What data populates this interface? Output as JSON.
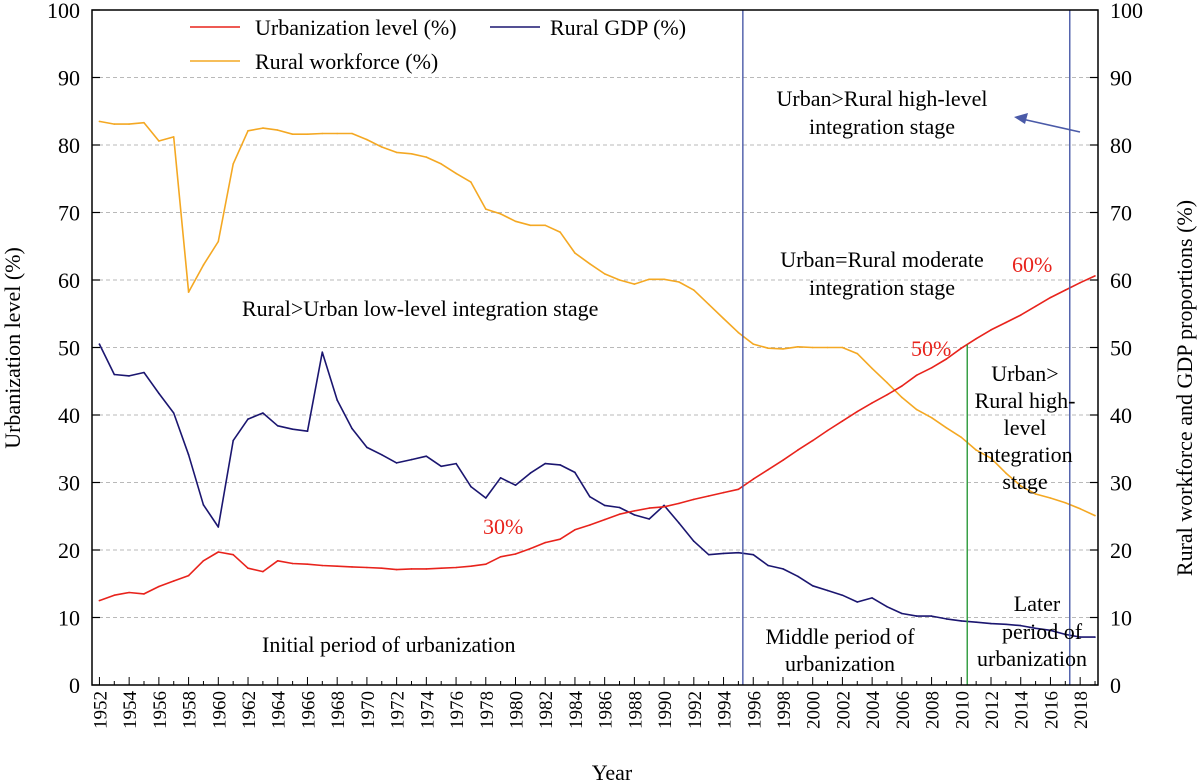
{
  "chart_data": {
    "type": "line",
    "title": "",
    "xlabel": "Year",
    "ylabel_left": "Urbanization level (%)",
    "ylabel_right": "Rural workforce and GDP proportions (%)",
    "xlim": [
      1951.5,
      2019.2
    ],
    "ylim": [
      0,
      100
    ],
    "grid": "horizontal dashed",
    "x_ticks": [
      1952,
      1954,
      1956,
      1958,
      1960,
      1962,
      1964,
      1966,
      1968,
      1970,
      1972,
      1974,
      1976,
      1978,
      1980,
      1982,
      1984,
      1986,
      1988,
      1990,
      1992,
      1994,
      1996,
      1998,
      2000,
      2002,
      2004,
      2006,
      2008,
      2010,
      2012,
      2014,
      2016,
      2018
    ],
    "y_ticks": [
      0,
      10,
      20,
      30,
      40,
      50,
      60,
      70,
      80,
      90,
      100
    ],
    "series": [
      {
        "name": "Urbanization level (%)",
        "color": "#e8231c",
        "x": [
          1952,
          1953,
          1954,
          1955,
          1956,
          1957,
          1958,
          1959,
          1960,
          1961,
          1962,
          1963,
          1964,
          1965,
          1966,
          1967,
          1968,
          1969,
          1970,
          1971,
          1972,
          1973,
          1974,
          1975,
          1976,
          1977,
          1978,
          1979,
          1980,
          1981,
          1982,
          1983,
          1984,
          1985,
          1986,
          1987,
          1988,
          1989,
          1990,
          1991,
          1992,
          1993,
          1994,
          1995,
          1996,
          1997,
          1998,
          1999,
          2000,
          2001,
          2002,
          2003,
          2004,
          2005,
          2006,
          2007,
          2008,
          2009,
          2010,
          2011,
          2012,
          2013,
          2014,
          2015,
          2016,
          2017,
          2018,
          2019
        ],
        "values": [
          12.5,
          13.3,
          13.7,
          13.5,
          14.6,
          15.4,
          16.2,
          18.4,
          19.7,
          19.3,
          17.3,
          16.8,
          18.4,
          18.0,
          17.9,
          17.7,
          17.6,
          17.5,
          17.4,
          17.3,
          17.1,
          17.2,
          17.2,
          17.3,
          17.4,
          17.6,
          17.9,
          19.0,
          19.4,
          20.2,
          21.1,
          21.6,
          23.0,
          23.7,
          24.5,
          25.3,
          25.8,
          26.2,
          26.4,
          26.9,
          27.5,
          28.0,
          28.5,
          29.0,
          30.5,
          31.9,
          33.3,
          34.8,
          36.2,
          37.7,
          39.1,
          40.5,
          41.8,
          43.0,
          44.3,
          45.9,
          47.0,
          48.3,
          49.9,
          51.3,
          52.6,
          53.7,
          54.8,
          56.1,
          57.4,
          58.5,
          59.6,
          60.6
        ]
      },
      {
        "name": "Rural GDP  (%)",
        "color": "#1b1670",
        "x": [
          1952,
          1953,
          1954,
          1955,
          1956,
          1957,
          1958,
          1959,
          1960,
          1961,
          1962,
          1963,
          1964,
          1965,
          1966,
          1967,
          1968,
          1969,
          1970,
          1971,
          1972,
          1973,
          1974,
          1975,
          1976,
          1977,
          1978,
          1979,
          1980,
          1981,
          1982,
          1983,
          1984,
          1985,
          1986,
          1987,
          1988,
          1989,
          1990,
          1991,
          1992,
          1993,
          1994,
          1995,
          1996,
          1997,
          1998,
          1999,
          2000,
          2001,
          2002,
          2003,
          2004,
          2005,
          2006,
          2007,
          2008,
          2009,
          2010,
          2011,
          2012,
          2013,
          2014,
          2015,
          2016,
          2017,
          2018,
          2019
        ],
        "values": [
          50.5,
          46.0,
          45.8,
          46.3,
          43.2,
          40.3,
          34.1,
          26.7,
          23.4,
          36.2,
          39.4,
          40.3,
          38.4,
          37.9,
          37.6,
          49.3,
          42.2,
          38.0,
          35.2,
          34.1,
          32.9,
          33.4,
          33.9,
          32.4,
          32.8,
          29.4,
          27.7,
          30.7,
          29.6,
          31.4,
          32.8,
          32.6,
          31.5,
          27.9,
          26.6,
          26.3,
          25.2,
          24.6,
          26.6,
          24.0,
          21.3,
          19.3,
          19.5,
          19.6,
          19.3,
          17.7,
          17.2,
          16.1,
          14.7,
          14.0,
          13.3,
          12.3,
          12.9,
          11.6,
          10.6,
          10.2,
          10.2,
          9.8,
          9.5,
          9.3,
          9.1,
          9.0,
          8.8,
          8.4,
          8.1,
          7.5,
          7.1,
          7.1
        ]
      },
      {
        "name": "Rural workforce (%)",
        "color": "#f4a823",
        "x": [
          1952,
          1953,
          1954,
          1955,
          1956,
          1957,
          1958,
          1959,
          1960,
          1961,
          1962,
          1963,
          1964,
          1965,
          1966,
          1967,
          1968,
          1969,
          1970,
          1971,
          1972,
          1973,
          1974,
          1975,
          1976,
          1977,
          1978,
          1979,
          1980,
          1981,
          1982,
          1983,
          1984,
          1985,
          1986,
          1987,
          1988,
          1989,
          1990,
          1991,
          1992,
          1993,
          1994,
          1995,
          1996,
          1997,
          1998,
          1999,
          2000,
          2001,
          2002,
          2003,
          2004,
          2005,
          2006,
          2007,
          2008,
          2009,
          2010,
          2011,
          2012,
          2013,
          2014,
          2015,
          2016,
          2017,
          2018,
          2019
        ],
        "values": [
          83.5,
          83.1,
          83.1,
          83.3,
          80.6,
          81.2,
          58.2,
          62.2,
          65.7,
          77.2,
          82.1,
          82.5,
          82.2,
          81.6,
          81.6,
          81.7,
          81.7,
          81.7,
          80.8,
          79.7,
          78.9,
          78.7,
          78.2,
          77.2,
          75.8,
          74.5,
          70.5,
          69.8,
          68.7,
          68.1,
          68.1,
          67.1,
          64.0,
          62.4,
          60.9,
          60.0,
          59.4,
          60.1,
          60.1,
          59.7,
          58.5,
          56.4,
          54.3,
          52.2,
          50.5,
          49.9,
          49.8,
          50.1,
          50.0,
          50.0,
          50.0,
          49.1,
          46.9,
          44.8,
          42.6,
          40.8,
          39.6,
          38.1,
          36.7,
          34.8,
          33.6,
          31.4,
          29.5,
          28.3,
          27.7,
          27.0,
          26.1,
          25.1
        ]
      }
    ],
    "legend": {
      "placement": "top",
      "entries": [
        "Urbanization level (%)",
        "Rural GDP  (%)",
        "Rural workforce (%)"
      ]
    },
    "vertical_lines": [
      {
        "x": 1995.3,
        "color": "#4a5aa8"
      },
      {
        "x": 2010.4,
        "color": "#2b9a3a",
        "y_top": 50.4
      },
      {
        "x": 2017.3,
        "color": "#4a5aa8"
      }
    ],
    "annotations": {
      "stage_rural_urban": "Rural>Urban low-level integration stage",
      "stage_moderate_1": "Urban=Rural moderate",
      "stage_moderate_2": "integration stage",
      "stage_high_1": "Urban>Rural high-level",
      "stage_high_2": "integration stage",
      "stage_side_1": "Urban>",
      "stage_side_2": "Rural high-",
      "stage_side_3": "level",
      "stage_side_4": "integration",
      "stage_side_5": "stage",
      "period_initial": "Initial period of urbanization",
      "period_middle_1": "Middle period of",
      "period_middle_2": "urbanization",
      "period_later_1": "Later",
      "period_later_2": "period of",
      "period_later_3": "urbanization",
      "pct_30": "30%",
      "pct_50": "50%",
      "pct_60": "60%"
    },
    "pct_color": "#e8231c",
    "arrow_color": "#4a5aa8"
  }
}
